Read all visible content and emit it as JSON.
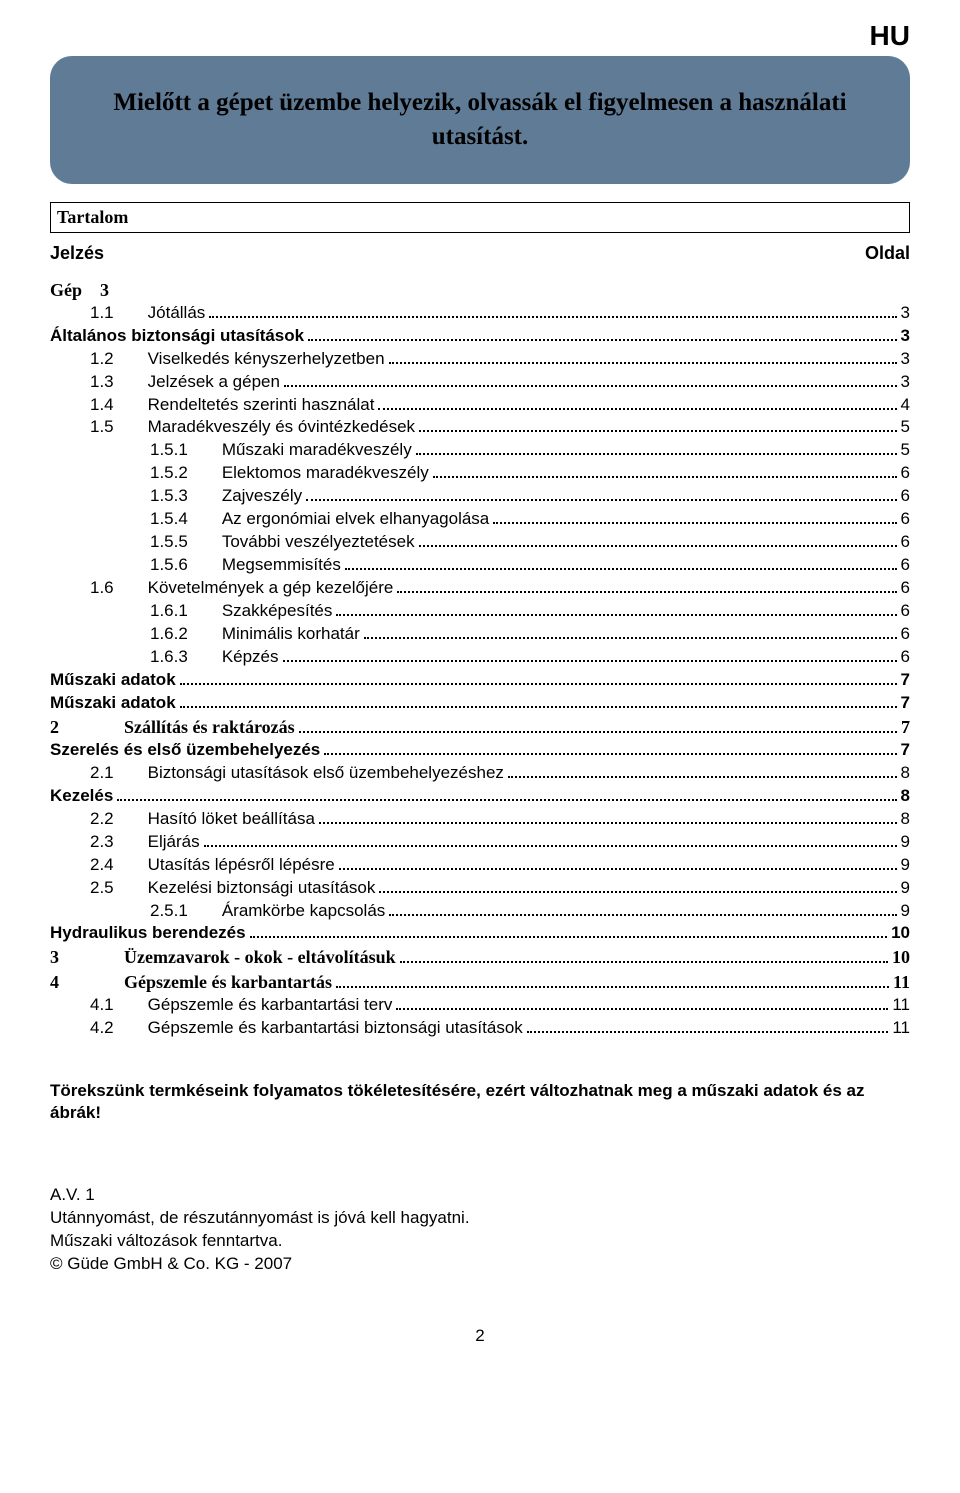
{
  "lang_code": "HU",
  "callout": "Mielőtt a gépet üzembe helyezik, olvassák el figyelmesen a használati utasítást.",
  "toc_title": "Tartalom",
  "toc_header_left": "Jelzés",
  "toc_header_right": "Oldal",
  "toc": [
    {
      "num": "Gép",
      "label": "3",
      "page": "",
      "bold": true,
      "heavy": true,
      "indent": 0,
      "nodots": true
    },
    {
      "num": "1.1",
      "label": "Jótállás",
      "page": "3",
      "indent": 1
    },
    {
      "num": "",
      "label": "Általános biztonsági utasítások",
      "page": "3",
      "bold": true,
      "indent": 0
    },
    {
      "num": "1.2",
      "label": "Viselkedés kényszerhelyzetben",
      "page": "3",
      "indent": 1
    },
    {
      "num": "1.3",
      "label": "Jelzések a gépen",
      "page": "3",
      "indent": 1
    },
    {
      "num": "1.4",
      "label": "Rendeltetés szerinti használat",
      "page": "4",
      "indent": 1
    },
    {
      "num": "1.5",
      "label": "Maradékveszély és óvintézkedések",
      "page": "5",
      "indent": 1
    },
    {
      "num": "1.5.1",
      "label": "Műszaki maradékveszély",
      "page": "5",
      "indent": 2
    },
    {
      "num": "1.5.2",
      "label": "Elektomos maradékveszély",
      "page": "6",
      "indent": 2
    },
    {
      "num": "1.5.3",
      "label": "Zajveszély",
      "page": "6",
      "indent": 2
    },
    {
      "num": "1.5.4",
      "label": "Az ergonómiai elvek elhanyagolása",
      "page": "6",
      "indent": 2
    },
    {
      "num": "1.5.5",
      "label": "További veszélyeztetések",
      "page": "6",
      "indent": 2
    },
    {
      "num": "1.5.6",
      "label": "Megsemmisítés",
      "page": "6",
      "indent": 2
    },
    {
      "num": "1.6",
      "label": "Követelmények a gép kezelőjére",
      "page": "6",
      "indent": 1
    },
    {
      "num": "1.6.1",
      "label": "Szakképesítés",
      "page": "6",
      "indent": 2
    },
    {
      "num": "1.6.2",
      "label": "Minimális korhatár",
      "page": "6",
      "indent": 2
    },
    {
      "num": "1.6.3",
      "label": "Képzés",
      "page": "6",
      "indent": 2
    },
    {
      "num": "",
      "label": "Műszaki adatok",
      "page": "7",
      "bold": true,
      "indent": 0
    },
    {
      "num": "",
      "label": "Műszaki adatok",
      "page": "7",
      "bold": true,
      "indent": 0
    },
    {
      "num": "2",
      "label": "Szállítás és raktározás",
      "page": "7",
      "bold": true,
      "heavy": true,
      "indent": 0,
      "numwide": true
    },
    {
      "num": "",
      "label": "Szerelés és első üzembehelyezés",
      "page": "7",
      "bold": true,
      "indent": 0
    },
    {
      "num": "2.1",
      "label": "Biztonsági utasítások első üzembehelyezéshez",
      "page": "8",
      "indent": 1
    },
    {
      "num": "",
      "label": "Kezelés",
      "page": "8",
      "bold": true,
      "indent": 0
    },
    {
      "num": "2.2",
      "label": "Hasító löket beállítása",
      "page": "8",
      "indent": 1
    },
    {
      "num": "2.3",
      "label": "Eljárás",
      "page": "9",
      "indent": 1
    },
    {
      "num": "2.4",
      "label": "Utasítás lépésről lépésre",
      "page": "9",
      "indent": 1
    },
    {
      "num": "2.5",
      "label": "Kezelési biztonsági utasítások",
      "page": "9",
      "indent": 1
    },
    {
      "num": "2.5.1",
      "label": "Áramkörbe kapcsolás",
      "page": "9",
      "indent": 2
    },
    {
      "num": "",
      "label": "Hydraulikus berendezés",
      "page": "10",
      "bold": true,
      "indent": 0
    },
    {
      "num": "3",
      "label": "Üzemzavarok - okok - eltávolításuk",
      "page": "10",
      "bold": true,
      "heavy": true,
      "indent": 0,
      "numwide": true
    },
    {
      "num": "4",
      "label": "Gépszemle és karbantartás",
      "page": "11",
      "bold": true,
      "heavy": true,
      "indent": 0,
      "numwide": true
    },
    {
      "num": "4.1",
      "label": "Gépszemle és karbantartási terv",
      "page": "11",
      "indent": 1
    },
    {
      "num": "4.2",
      "label": "Gépszemle és karbantartási biztonsági utasítások",
      "page": "11",
      "indent": 1
    }
  ],
  "footnote": "Törekszünk termkéseink folyamatos tökéletesítésére, ezért változhatnak meg a műszaki adatok és az ábrák!",
  "imprint": {
    "line1": "A.V. 1",
    "line2": "Utánnyomást, de részutánnyomást is jóvá kell hagyatni.",
    "line3": "Műszaki változások fenntartva.",
    "line4": "© Güde GmbH & Co. KG - 2007"
  },
  "page_number": "2",
  "colors": {
    "callout_bg": "#5f7b96",
    "text": "#000000",
    "page_bg": "#ffffff"
  }
}
